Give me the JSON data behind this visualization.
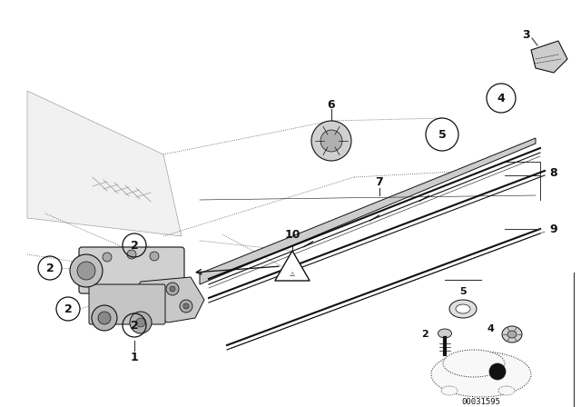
{
  "bg_color": "#ffffff",
  "part_number_text": "00031595",
  "figsize": [
    6.4,
    4.48
  ],
  "dpi": 100,
  "dark": "#111111",
  "gray": "#666666",
  "light_gray": "#aaaaaa",
  "mid_gray": "#888888"
}
